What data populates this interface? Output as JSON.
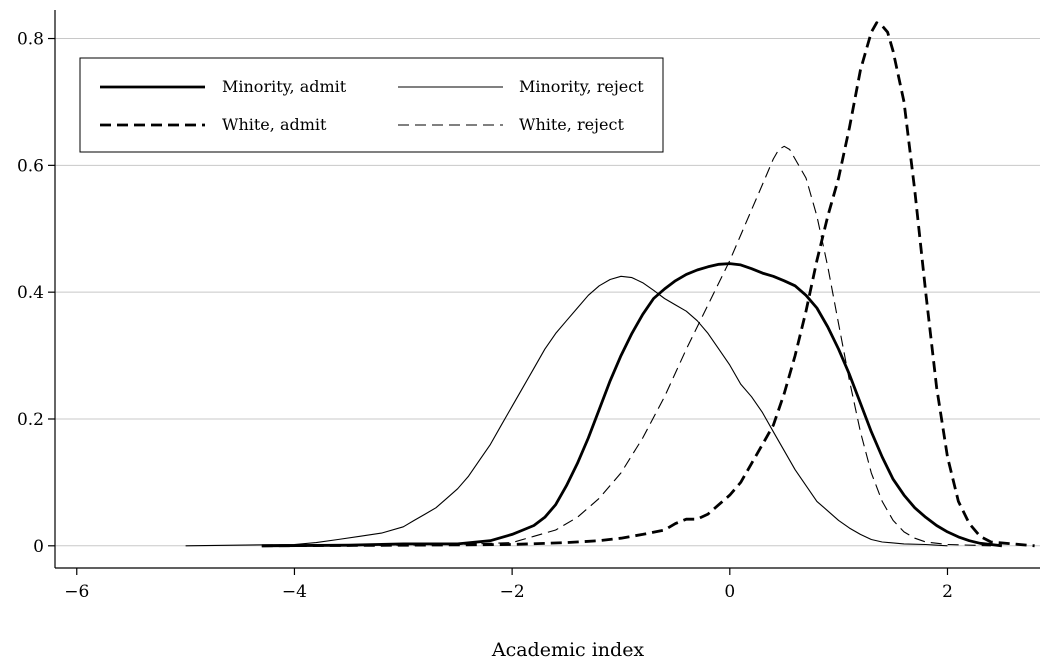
{
  "chart_data": {
    "type": "line",
    "title": "",
    "xlabel": "Academic index",
    "ylabel": "",
    "xlim": [
      -6.2,
      2.85
    ],
    "ylim": [
      -0.035,
      0.845
    ],
    "x_ticks": [
      -6,
      -4,
      -2,
      0,
      2
    ],
    "x_tick_labels": [
      "−6",
      "−4",
      "−2",
      "0",
      "2"
    ],
    "y_ticks": [
      0,
      0.2,
      0.4,
      0.6,
      0.8
    ],
    "y_tick_labels": [
      "0",
      "0.2",
      "0.4",
      "0.6",
      "0.8"
    ],
    "grid": "horizontal",
    "legend_position": "top-left",
    "legend_order": [
      0,
      1,
      2,
      3
    ],
    "series": [
      {
        "name": "Minority, admit",
        "style": "thick-solid",
        "points": [
          [
            -4.3,
            0.0
          ],
          [
            -3.5,
            0.001
          ],
          [
            -3.0,
            0.003
          ],
          [
            -2.5,
            0.003
          ],
          [
            -2.2,
            0.008
          ],
          [
            -2.0,
            0.018
          ],
          [
            -1.9,
            0.025
          ],
          [
            -1.8,
            0.032
          ],
          [
            -1.7,
            0.045
          ],
          [
            -1.6,
            0.065
          ],
          [
            -1.5,
            0.095
          ],
          [
            -1.4,
            0.13
          ],
          [
            -1.3,
            0.17
          ],
          [
            -1.2,
            0.215
          ],
          [
            -1.1,
            0.26
          ],
          [
            -1.0,
            0.3
          ],
          [
            -0.9,
            0.335
          ],
          [
            -0.8,
            0.365
          ],
          [
            -0.7,
            0.39
          ],
          [
            -0.6,
            0.405
          ],
          [
            -0.5,
            0.418
          ],
          [
            -0.4,
            0.428
          ],
          [
            -0.3,
            0.435
          ],
          [
            -0.2,
            0.44
          ],
          [
            -0.1,
            0.444
          ],
          [
            0.0,
            0.445
          ],
          [
            0.1,
            0.443
          ],
          [
            0.2,
            0.437
          ],
          [
            0.3,
            0.43
          ],
          [
            0.4,
            0.425
          ],
          [
            0.5,
            0.418
          ],
          [
            0.6,
            0.41
          ],
          [
            0.7,
            0.395
          ],
          [
            0.8,
            0.375
          ],
          [
            0.9,
            0.345
          ],
          [
            1.0,
            0.31
          ],
          [
            1.1,
            0.27
          ],
          [
            1.2,
            0.225
          ],
          [
            1.3,
            0.18
          ],
          [
            1.4,
            0.14
          ],
          [
            1.5,
            0.105
          ],
          [
            1.6,
            0.08
          ],
          [
            1.7,
            0.06
          ],
          [
            1.8,
            0.045
          ],
          [
            1.9,
            0.032
          ],
          [
            2.0,
            0.022
          ],
          [
            2.1,
            0.014
          ],
          [
            2.2,
            0.008
          ],
          [
            2.3,
            0.004
          ],
          [
            2.4,
            0.002
          ],
          [
            2.5,
            0.0
          ]
        ]
      },
      {
        "name": "Minority, reject",
        "style": "thin-solid",
        "points": [
          [
            -5.0,
            0.0
          ],
          [
            -4.0,
            0.002
          ],
          [
            -3.8,
            0.005
          ],
          [
            -3.6,
            0.01
          ],
          [
            -3.4,
            0.015
          ],
          [
            -3.2,
            0.02
          ],
          [
            -3.0,
            0.03
          ],
          [
            -2.9,
            0.04
          ],
          [
            -2.8,
            0.05
          ],
          [
            -2.7,
            0.06
          ],
          [
            -2.6,
            0.075
          ],
          [
            -2.5,
            0.09
          ],
          [
            -2.4,
            0.11
          ],
          [
            -2.3,
            0.135
          ],
          [
            -2.2,
            0.16
          ],
          [
            -2.1,
            0.19
          ],
          [
            -2.0,
            0.22
          ],
          [
            -1.9,
            0.25
          ],
          [
            -1.8,
            0.28
          ],
          [
            -1.7,
            0.31
          ],
          [
            -1.6,
            0.335
          ],
          [
            -1.5,
            0.355
          ],
          [
            -1.4,
            0.375
          ],
          [
            -1.3,
            0.395
          ],
          [
            -1.2,
            0.41
          ],
          [
            -1.1,
            0.42
          ],
          [
            -1.0,
            0.425
          ],
          [
            -0.9,
            0.423
          ],
          [
            -0.8,
            0.415
          ],
          [
            -0.7,
            0.403
          ],
          [
            -0.6,
            0.39
          ],
          [
            -0.5,
            0.38
          ],
          [
            -0.4,
            0.37
          ],
          [
            -0.3,
            0.355
          ],
          [
            -0.2,
            0.335
          ],
          [
            -0.1,
            0.31
          ],
          [
            0.0,
            0.285
          ],
          [
            0.1,
            0.255
          ],
          [
            0.2,
            0.235
          ],
          [
            0.3,
            0.21
          ],
          [
            0.4,
            0.18
          ],
          [
            0.5,
            0.15
          ],
          [
            0.6,
            0.12
          ],
          [
            0.7,
            0.095
          ],
          [
            0.8,
            0.07
          ],
          [
            0.9,
            0.055
          ],
          [
            1.0,
            0.04
          ],
          [
            1.1,
            0.028
          ],
          [
            1.2,
            0.018
          ],
          [
            1.3,
            0.01
          ],
          [
            1.4,
            0.006
          ],
          [
            1.6,
            0.003
          ],
          [
            1.8,
            0.002
          ],
          [
            2.0,
            0.0
          ]
        ]
      },
      {
        "name": "White, admit",
        "style": "thick-dashed",
        "points": [
          [
            -4.3,
            0.0
          ],
          [
            -3.0,
            0.001
          ],
          [
            -2.0,
            0.002
          ],
          [
            -1.5,
            0.005
          ],
          [
            -1.2,
            0.008
          ],
          [
            -1.0,
            0.012
          ],
          [
            -0.8,
            0.018
          ],
          [
            -0.6,
            0.025
          ],
          [
            -0.5,
            0.035
          ],
          [
            -0.4,
            0.042
          ],
          [
            -0.3,
            0.042
          ],
          [
            -0.2,
            0.05
          ],
          [
            -0.1,
            0.065
          ],
          [
            0.0,
            0.08
          ],
          [
            0.1,
            0.1
          ],
          [
            0.2,
            0.13
          ],
          [
            0.3,
            0.16
          ],
          [
            0.4,
            0.19
          ],
          [
            0.5,
            0.24
          ],
          [
            0.6,
            0.3
          ],
          [
            0.7,
            0.37
          ],
          [
            0.8,
            0.45
          ],
          [
            0.9,
            0.52
          ],
          [
            1.0,
            0.58
          ],
          [
            1.1,
            0.66
          ],
          [
            1.2,
            0.75
          ],
          [
            1.3,
            0.81
          ],
          [
            1.35,
            0.825
          ],
          [
            1.4,
            0.82
          ],
          [
            1.45,
            0.81
          ],
          [
            1.5,
            0.78
          ],
          [
            1.6,
            0.7
          ],
          [
            1.7,
            0.56
          ],
          [
            1.8,
            0.4
          ],
          [
            1.9,
            0.25
          ],
          [
            2.0,
            0.14
          ],
          [
            2.1,
            0.07
          ],
          [
            2.2,
            0.035
          ],
          [
            2.3,
            0.015
          ],
          [
            2.4,
            0.006
          ],
          [
            2.6,
            0.003
          ],
          [
            2.8,
            0.0
          ]
        ]
      },
      {
        "name": "White, reject",
        "style": "thin-dashed",
        "points": [
          [
            -4.0,
            0.0
          ],
          [
            -3.0,
            0.001
          ],
          [
            -2.5,
            0.002
          ],
          [
            -2.0,
            0.005
          ],
          [
            -1.8,
            0.015
          ],
          [
            -1.6,
            0.025
          ],
          [
            -1.4,
            0.045
          ],
          [
            -1.2,
            0.075
          ],
          [
            -1.0,
            0.115
          ],
          [
            -0.8,
            0.17
          ],
          [
            -0.6,
            0.235
          ],
          [
            -0.4,
            0.31
          ],
          [
            -0.2,
            0.38
          ],
          [
            0.0,
            0.45
          ],
          [
            0.1,
            0.49
          ],
          [
            0.2,
            0.53
          ],
          [
            0.3,
            0.57
          ],
          [
            0.4,
            0.61
          ],
          [
            0.45,
            0.625
          ],
          [
            0.5,
            0.63
          ],
          [
            0.55,
            0.625
          ],
          [
            0.6,
            0.61
          ],
          [
            0.7,
            0.58
          ],
          [
            0.8,
            0.52
          ],
          [
            0.9,
            0.44
          ],
          [
            1.0,
            0.35
          ],
          [
            1.1,
            0.26
          ],
          [
            1.2,
            0.18
          ],
          [
            1.3,
            0.115
          ],
          [
            1.4,
            0.07
          ],
          [
            1.5,
            0.04
          ],
          [
            1.6,
            0.022
          ],
          [
            1.7,
            0.012
          ],
          [
            1.8,
            0.006
          ],
          [
            2.0,
            0.002
          ],
          [
            2.4,
            0.0
          ]
        ]
      }
    ]
  }
}
